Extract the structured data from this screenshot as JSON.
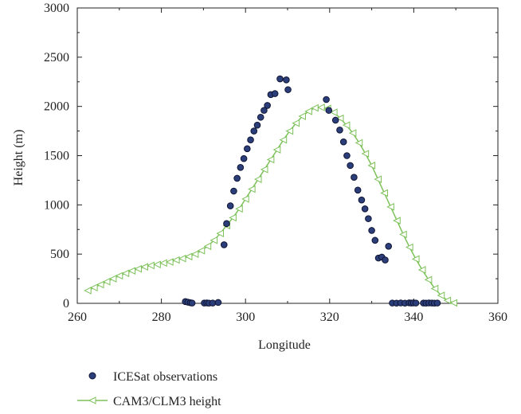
{
  "chart_data": {
    "type": "scatter",
    "title": "",
    "xlabel": "Longitude",
    "ylabel": "Height (m)",
    "xlim": [
      260,
      360
    ],
    "ylim": [
      0,
      3000
    ],
    "xticks": [
      "260",
      "280",
      "300",
      "320",
      "340",
      "360"
    ],
    "yticks": [
      "0",
      "500",
      "1000",
      "1500",
      "2000",
      "2500",
      "3000"
    ],
    "grid": false,
    "legend_position": "bottom-left below plot",
    "series": [
      {
        "name": "ICESat observations",
        "style": "markers",
        "marker": "circle",
        "color": "#2c3e7a",
        "edge_color": "#0f1533",
        "x": [
          285.7,
          286.3,
          286.9,
          287.3,
          290.2,
          290.8,
          291.3,
          292.2,
          293.5,
          294.9,
          295.5,
          296.4,
          297.2,
          298.0,
          298.8,
          299.6,
          300.4,
          301.2,
          302.0,
          302.8,
          303.6,
          304.4,
          305.2,
          306.0,
          307.0,
          308.2,
          309.7,
          310.1,
          319.2,
          319.8,
          321.4,
          322.4,
          323.3,
          324.1,
          324.9,
          325.8,
          326.7,
          327.6,
          328.4,
          329.2,
          330.0,
          330.8,
          331.6,
          332.4,
          333.2,
          334.0,
          334.9,
          335.9,
          336.9,
          337.9,
          338.9,
          339.4,
          339.9,
          340.5,
          342.3,
          342.9,
          343.6,
          344.3,
          344.9,
          345.6
        ],
        "y": [
          18,
          12,
          6,
          3,
          3,
          4,
          2,
          3,
          9,
          595,
          810,
          990,
          1140,
          1270,
          1380,
          1470,
          1570,
          1660,
          1750,
          1810,
          1890,
          1960,
          2010,
          2120,
          2130,
          2280,
          2270,
          2170,
          2070,
          1960,
          1860,
          1760,
          1640,
          1500,
          1400,
          1280,
          1150,
          1050,
          960,
          860,
          740,
          640,
          460,
          470,
          440,
          580,
          3,
          2,
          4,
          2,
          5,
          3,
          4,
          3,
          3,
          2,
          4,
          3,
          2,
          3
        ]
      },
      {
        "name": "CAM3/CLM3 height",
        "style": "line+markers",
        "marker": "triangle-left",
        "color": "#7dc15a",
        "x": [
          262.5,
          264.0,
          265.5,
          267.0,
          268.5,
          270.0,
          271.5,
          273.0,
          274.5,
          276.0,
          277.5,
          279.0,
          280.5,
          282.0,
          283.5,
          285.0,
          286.5,
          288.0,
          289.5,
          291.0,
          292.5,
          294.0,
          295.5,
          297.0,
          298.5,
          300.0,
          301.5,
          303.0,
          304.5,
          306.0,
          307.5,
          309.0,
          310.5,
          312.0,
          313.5,
          315.0,
          316.5,
          318.0,
          319.5,
          321.0,
          322.5,
          324.0,
          325.5,
          327.0,
          328.5,
          330.0,
          331.5,
          333.0,
          334.5,
          336.0,
          337.5,
          339.0,
          340.5,
          342.0,
          343.5,
          345.0,
          346.5,
          348.0,
          349.5
        ],
        "y": [
          130,
          160,
          190,
          220,
          250,
          280,
          305,
          330,
          350,
          370,
          385,
          395,
          410,
          420,
          440,
          455,
          475,
          500,
          535,
          580,
          640,
          710,
          790,
          870,
          960,
          1060,
          1160,
          1260,
          1360,
          1460,
          1560,
          1660,
          1750,
          1830,
          1900,
          1950,
          1985,
          1990,
          1980,
          1940,
          1880,
          1810,
          1730,
          1630,
          1520,
          1400,
          1260,
          1120,
          980,
          840,
          700,
          570,
          450,
          340,
          240,
          150,
          80,
          30,
          5
        ]
      }
    ]
  }
}
